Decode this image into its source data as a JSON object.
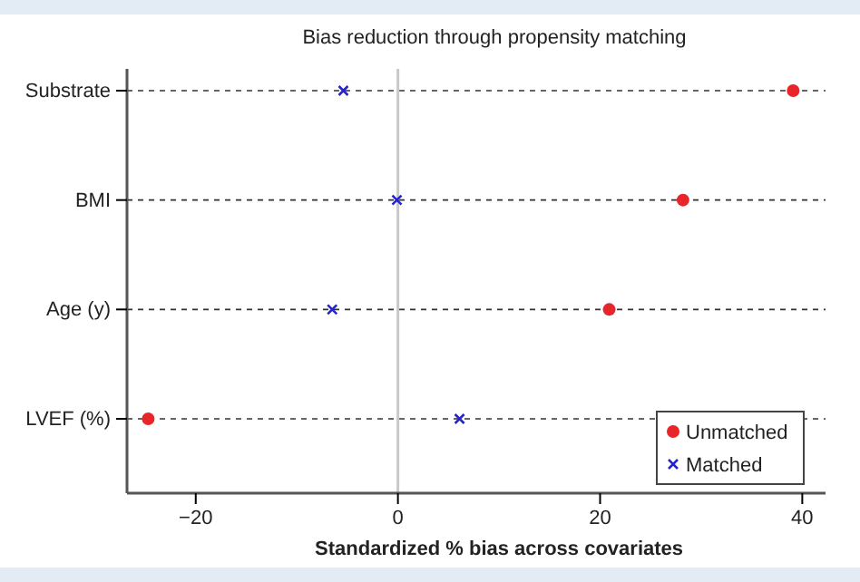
{
  "chart_data": {
    "type": "scatter",
    "orientation": "horizontal",
    "title": "Bias reduction through propensity matching",
    "xlabel": "Standardized % bias across covariates",
    "categories": [
      "Substrate",
      "BMI",
      "Age (y)",
      "LVEF (%)"
    ],
    "series": [
      {
        "name": "Unmatched",
        "color": "#e8262a",
        "marker": "circle",
        "values": [
          39.1,
          28.2,
          20.9,
          -24.7
        ]
      },
      {
        "name": "Matched",
        "color": "#2424c8",
        "marker": "cross",
        "values": [
          -5.4,
          -0.1,
          -6.5,
          6.1
        ]
      }
    ],
    "xlim": [
      -26.8,
      42.3
    ],
    "xticks": [
      {
        "value": -20,
        "label": "−20"
      },
      0,
      20,
      40
    ],
    "ref_lines": [
      {
        "axis": "x",
        "value": 0,
        "color": "#c8c8c8"
      }
    ],
    "grid": "y",
    "line_style": "dashed",
    "legend": "bottom right"
  }
}
